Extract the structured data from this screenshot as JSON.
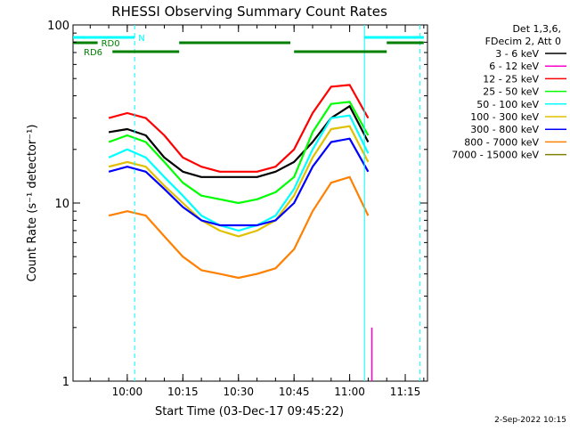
{
  "chart_data": {
    "type": "line",
    "title": "RHESSI Observing Summary Count Rates",
    "xlabel": "Start Time (03-Dec-17 09:45:22)",
    "ylabel": "Count Rate (s⁻¹ detector⁻¹)",
    "x_ticks": [
      "10:00",
      "10:15",
      "10:30",
      "10:45",
      "11:00",
      "11:15"
    ],
    "x_range": [
      "09:45:22",
      "11:21:00"
    ],
    "y_scale": "log",
    "ylim": [
      1,
      100
    ],
    "y_ticks": [
      "1",
      "10",
      "100"
    ],
    "legend_header": [
      "Det 1,3,6,",
      "FDecim 2, Att 0"
    ],
    "legend_placement": "right",
    "series": [
      {
        "name": "3 - 6 keV",
        "color": "#000000",
        "x": [
          "09:55",
          "10:00",
          "10:05",
          "10:10",
          "10:15",
          "10:20",
          "10:25",
          "10:30",
          "10:35",
          "10:40",
          "10:45",
          "10:50",
          "10:55",
          "11:00",
          "11:05"
        ],
        "values": [
          25,
          26,
          24,
          18,
          15,
          14,
          14,
          14,
          14,
          15,
          17,
          22,
          30,
          35,
          22
        ]
      },
      {
        "name": "6 - 12 keV",
        "color": "#ff00cc",
        "x": [
          "11:06",
          "11:06:30"
        ],
        "values": [
          1,
          2
        ]
      },
      {
        "name": "12 - 25 keV",
        "color": "#ff0000",
        "x": [
          "09:55",
          "10:00",
          "10:05",
          "10:10",
          "10:15",
          "10:20",
          "10:25",
          "10:30",
          "10:35",
          "10:40",
          "10:45",
          "10:50",
          "10:55",
          "11:00",
          "11:05"
        ],
        "values": [
          30,
          32,
          30,
          24,
          18,
          16,
          15,
          15,
          15,
          16,
          20,
          32,
          45,
          46,
          30
        ]
      },
      {
        "name": "25 - 50 keV",
        "color": "#00ff00",
        "x": [
          "09:55",
          "10:00",
          "10:05",
          "10:10",
          "10:15",
          "10:20",
          "10:25",
          "10:30",
          "10:35",
          "10:40",
          "10:45",
          "10:50",
          "10:55",
          "11:00",
          "11:05"
        ],
        "values": [
          22,
          24,
          22,
          17,
          13,
          11,
          10.5,
          10,
          10.5,
          11.5,
          14,
          25,
          36,
          37,
          24
        ]
      },
      {
        "name": "50 - 100 keV",
        "color": "#00ffff",
        "x": [
          "09:55",
          "10:00",
          "10:05",
          "10:10",
          "10:15",
          "10:20",
          "10:25",
          "10:30",
          "10:35",
          "10:40",
          "10:45",
          "10:50",
          "10:55",
          "11:00",
          "11:05"
        ],
        "values": [
          18,
          20,
          18,
          14,
          11,
          8.5,
          7.5,
          7,
          7.5,
          8.5,
          12,
          20,
          30,
          31,
          19
        ]
      },
      {
        "name": "100 - 300 keV",
        "color": "#e0c000",
        "x": [
          "09:55",
          "10:00",
          "10:05",
          "10:10",
          "10:15",
          "10:20",
          "10:25",
          "10:30",
          "10:35",
          "10:40",
          "10:45",
          "10:50",
          "10:55",
          "11:00",
          "11:05"
        ],
        "values": [
          16,
          17,
          16,
          12.5,
          10,
          8,
          7,
          6.5,
          7,
          8,
          11,
          18,
          26,
          27,
          17
        ]
      },
      {
        "name": "300 - 800 keV",
        "color": "#0000ff",
        "x": [
          "09:55",
          "10:00",
          "10:05",
          "10:10",
          "10:15",
          "10:20",
          "10:25",
          "10:30",
          "10:35",
          "10:40",
          "10:45",
          "10:50",
          "10:55",
          "11:00",
          "11:05"
        ],
        "values": [
          15,
          16,
          15,
          12,
          9.5,
          8,
          7.5,
          7.5,
          7.5,
          8,
          10,
          16,
          22,
          23,
          15
        ]
      },
      {
        "name": "800 - 7000 keV",
        "color": "#ff8000",
        "x": [
          "09:55",
          "10:00",
          "10:05",
          "10:10",
          "10:15",
          "10:20",
          "10:25",
          "10:30",
          "10:35",
          "10:40",
          "10:45",
          "10:50",
          "10:55",
          "11:00",
          "11:05"
        ],
        "values": [
          8.5,
          9,
          8.5,
          6.5,
          5,
          4.2,
          4,
          3.8,
          4,
          4.3,
          5.5,
          9,
          13,
          14,
          8.5
        ]
      },
      {
        "name": "7000 - 15000 keV",
        "color": "#808000",
        "x": [],
        "values": []
      }
    ],
    "annotations": {
      "attenuator_bars": [
        {
          "label": "N",
          "color": "#00ffff",
          "segments": [
            [
              "09:45",
              "10:02"
            ],
            [
              "11:04",
              "11:20"
            ]
          ]
        },
        {
          "label": "RD0",
          "color": "#008000",
          "segments": [
            [
              "09:45",
              "09:52"
            ],
            [
              "10:14",
              "10:44"
            ],
            [
              "11:10",
              "11:20"
            ]
          ]
        },
        {
          "label": "RD6",
          "color": "#008000",
          "segments": [
            [
              "09:56",
              "10:14"
            ],
            [
              "10:45",
              "11:10"
            ]
          ]
        }
      ],
      "vertical_lines": [
        {
          "time": "10:02",
          "color": "#00ffff",
          "style": "dashed"
        },
        {
          "time": "11:04",
          "color": "#00ffff",
          "style": "solid"
        },
        {
          "time": "11:19",
          "color": "#00ffff",
          "style": "dashed"
        }
      ]
    },
    "footer_date": "2-Sep-2022 10:15"
  }
}
